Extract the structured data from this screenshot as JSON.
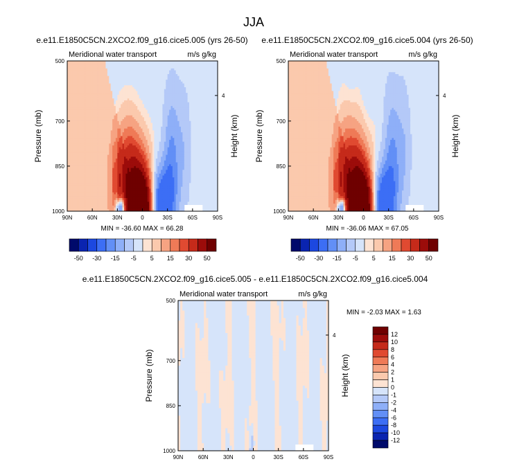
{
  "figure": {
    "title": "JJA"
  },
  "palette": {
    "full": [
      "#000a6b",
      "#0a24b0",
      "#1c48e0",
      "#3c6ef5",
      "#628ff6",
      "#8eaff8",
      "#b4c9f8",
      "#d6e4fa",
      "#fde3d3",
      "#fbc9ad",
      "#f6a382",
      "#ef7a57",
      "#e04a31",
      "#c52a1a",
      "#9c0c0a",
      "#6f0000"
    ],
    "diff": [
      "#f5f5f5",
      "#000a6b",
      "#0a24b0",
      "#1c48e0",
      "#3c6ef5",
      "#628ff6",
      "#8eaff8",
      "#b4c9f8",
      "#d6e4fa",
      "#fde3d3",
      "#fbc9ad",
      "#f6a382",
      "#ef7a57",
      "#e04a31",
      "#c52a1a",
      "#9c0c0a",
      "#6f0000"
    ]
  },
  "chart_data": [
    {
      "type": "heatmap",
      "id": "panel1",
      "title": "e.e11.E1850C5CN.2XCO2.f09_g16.cice5.005 (yrs 26-50)",
      "subtitle_left": "Meridional water transport",
      "subtitle_right": "m/s g/kg",
      "xlabel": "",
      "ylabel": "Pressure (mb)",
      "ylabel_right": "Height (km)",
      "x_ticks": [
        "90N",
        "60N",
        "30N",
        "0",
        "30S",
        "60S",
        "90S"
      ],
      "y_ticks": [
        "500",
        "700",
        "850",
        "1000"
      ],
      "y_ticks_right": [
        "4"
      ],
      "stats": "MIN = -36.60  MAX = 66.28",
      "colorbar_labels": [
        "-50",
        "-30",
        "-15",
        "-5",
        "5",
        "15",
        "30",
        "50"
      ],
      "min": -36.6,
      "max": 66.28
    },
    {
      "type": "heatmap",
      "id": "panel2",
      "title": "e.e11.E1850C5CN.2XCO2.f09_g16.cice5.004 (yrs 26-50)",
      "subtitle_left": "Meridional water transport",
      "subtitle_right": "m/s g/kg",
      "xlabel": "",
      "ylabel": "Pressure (mb)",
      "ylabel_right": "Height (km)",
      "x_ticks": [
        "90N",
        "60N",
        "30N",
        "0",
        "30S",
        "60S",
        "90S"
      ],
      "y_ticks": [
        "500",
        "700",
        "850",
        "1000"
      ],
      "y_ticks_right": [
        "4"
      ],
      "stats": "MIN = -36.06  MAX = 67.05",
      "colorbar_labels": [
        "-50",
        "-30",
        "-15",
        "-5",
        "5",
        "15",
        "30",
        "50"
      ],
      "min": -36.06,
      "max": 67.05
    },
    {
      "type": "heatmap",
      "id": "panel3",
      "title": "e.e11.E1850C5CN.2XCO2.f09_g16.cice5.005 - e.e11.E1850C5CN.2XCO2.f09_g16.cice5.004",
      "subtitle_left": "Meridional water transport",
      "subtitle_right": "m/s g/kg",
      "xlabel": "",
      "ylabel": "Pressure (mb)",
      "ylabel_right": "Height (km)",
      "x_ticks": [
        "90N",
        "60N",
        "30N",
        "0",
        "30S",
        "60S",
        "90S"
      ],
      "y_ticks": [
        "500",
        "700",
        "850",
        "1000"
      ],
      "y_ticks_right": [
        "4"
      ],
      "stats": "MIN =  -2.03  MAX =   1.63",
      "colorbar_labels": [
        "12",
        "10",
        "8",
        "6",
        "4",
        "2",
        "1",
        "0",
        "-1",
        "-2",
        "-4",
        "-6",
        "-8",
        "-10",
        "-12"
      ],
      "min": -2.03,
      "max": 1.63
    }
  ]
}
